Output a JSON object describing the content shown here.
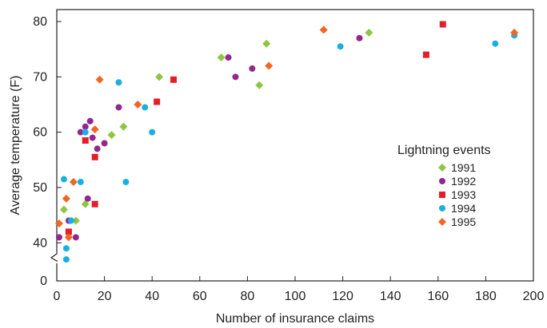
{
  "chart_data": {
    "type": "scatter",
    "title": "",
    "xlabel": "Number of insurance claims",
    "ylabel": "Average temperature (F)",
    "xlim": [
      0,
      200
    ],
    "ylim": [
      0,
      80
    ],
    "y_axis_break": true,
    "y_break_range": [
      0,
      36
    ],
    "x_ticks": [
      0,
      20,
      40,
      60,
      80,
      100,
      120,
      140,
      160,
      180,
      200
    ],
    "y_ticks": [
      0,
      40,
      50,
      60,
      70,
      80
    ],
    "grid": false,
    "legend_title": "Lightning events",
    "legend_placement": "right",
    "series": [
      {
        "name": "1991",
        "color": "#8dc63f",
        "marker": "diamond",
        "points": [
          [
            3,
            46
          ],
          [
            8,
            44
          ],
          [
            12,
            47
          ],
          [
            23,
            59.5
          ],
          [
            28,
            61
          ],
          [
            43,
            70
          ],
          [
            69,
            73.5
          ],
          [
            85,
            68.5
          ],
          [
            88,
            76
          ],
          [
            131,
            78
          ]
        ]
      },
      {
        "name": "1992",
        "color": "#92278f",
        "marker": "circle",
        "points": [
          [
            1,
            41
          ],
          [
            5,
            44
          ],
          [
            8,
            41
          ],
          [
            10,
            60
          ],
          [
            12,
            61
          ],
          [
            13,
            48
          ],
          [
            14,
            62
          ],
          [
            15,
            59
          ],
          [
            17,
            57
          ],
          [
            20,
            58
          ],
          [
            26,
            64.5
          ],
          [
            72,
            73.5
          ],
          [
            75,
            70
          ],
          [
            82,
            71.5
          ],
          [
            127,
            77
          ]
        ]
      },
      {
        "name": "1993",
        "color": "#e41e26",
        "marker": "square",
        "points": [
          [
            5,
            42
          ],
          [
            12,
            58.5
          ],
          [
            16,
            47
          ],
          [
            16,
            55.5
          ],
          [
            42,
            65.5
          ],
          [
            49,
            69.5
          ],
          [
            155,
            74
          ],
          [
            162,
            79.5
          ]
        ]
      },
      {
        "name": "1994",
        "color": "#1aafe3",
        "marker": "circle",
        "points": [
          [
            3,
            51.5
          ],
          [
            4,
            39
          ],
          [
            4,
            37
          ],
          [
            6,
            44
          ],
          [
            10,
            51
          ],
          [
            12,
            60
          ],
          [
            26,
            69
          ],
          [
            29,
            51
          ],
          [
            37,
            64.5
          ],
          [
            40,
            60
          ],
          [
            119,
            75.5
          ],
          [
            184,
            76
          ],
          [
            192,
            77.5
          ]
        ]
      },
      {
        "name": "1995",
        "color": "#f26522",
        "marker": "diamond",
        "points": [
          [
            1,
            43.5
          ],
          [
            4,
            48
          ],
          [
            5,
            41
          ],
          [
            7,
            51
          ],
          [
            16,
            60.5
          ],
          [
            18,
            69.5
          ],
          [
            34,
            65
          ],
          [
            89,
            72
          ],
          [
            112,
            78.5
          ],
          [
            192,
            78
          ]
        ]
      }
    ]
  }
}
